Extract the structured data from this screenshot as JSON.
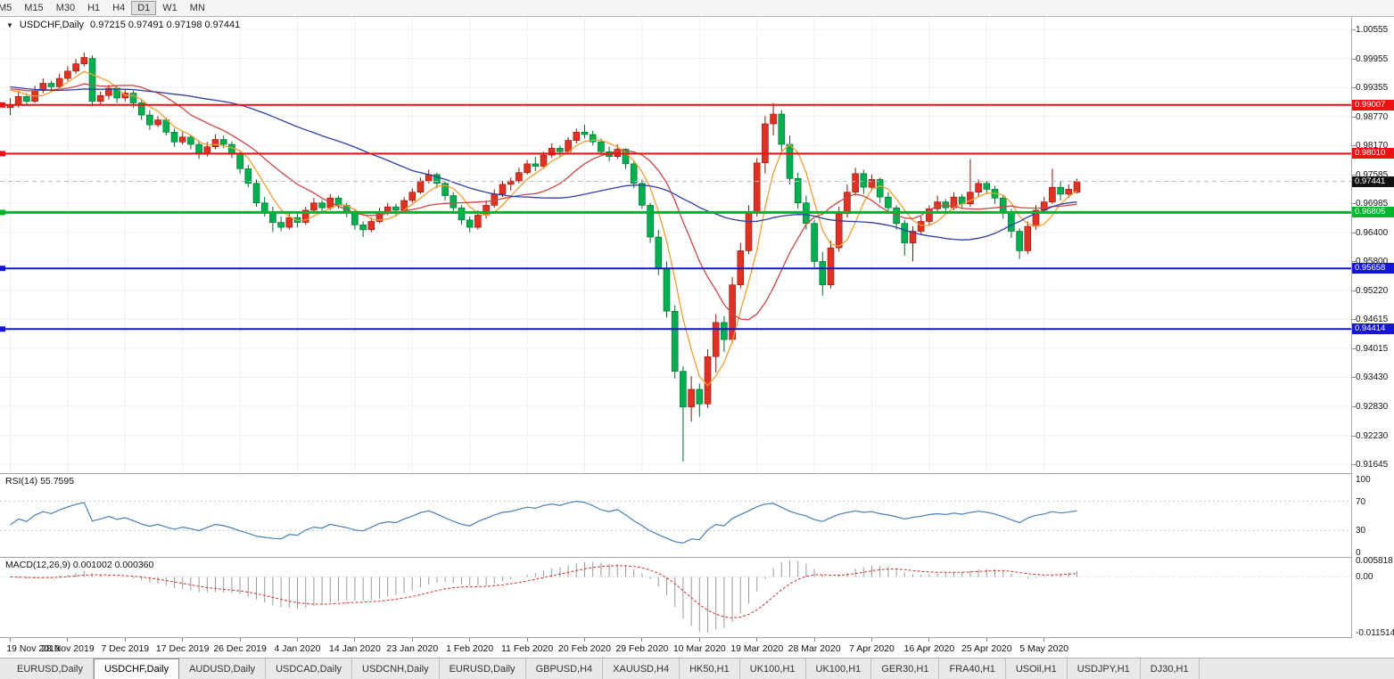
{
  "toolbar": {
    "timeframes": [
      "M5",
      "M15",
      "M30",
      "H1",
      "H4",
      "D1",
      "W1",
      "MN"
    ],
    "active_timeframe": "D1"
  },
  "chart": {
    "title": {
      "dropdown_icon": "▼",
      "symbol": "USDCHF,Daily",
      "ohlc": "0.97215 0.97491 0.97198 0.97441"
    },
    "price_scale": [
      "1.00555",
      "0.99955",
      "0.99355",
      "0.98770",
      "0.98170",
      "0.97585",
      "0.96985",
      "0.96400",
      "0.95800",
      "0.95220",
      "0.94615",
      "0.94015",
      "0.93430",
      "0.92830",
      "0.92230",
      "0.91645"
    ],
    "price_tags": [
      {
        "text": "0.99007",
        "price": 0.99007,
        "bg": "#ee1111",
        "line": "solid",
        "lw": 2
      },
      {
        "text": "0.98010",
        "price": 0.9801,
        "bg": "#ee1111",
        "line": "solid",
        "lw": 2
      },
      {
        "text": "0.97441",
        "price": 0.97441,
        "bg": "#101010",
        "line": "dashed",
        "lw": 1
      },
      {
        "text": "0.96805",
        "price": 0.96805,
        "bg": "#00b52b",
        "line": "solid",
        "lw": 3
      },
      {
        "text": "0.95658",
        "price": 0.95658,
        "bg": "#1515d6",
        "line": "solid",
        "lw": 2
      },
      {
        "text": "0.94414",
        "price": 0.94414,
        "bg": "#1515d6",
        "line": "solid",
        "lw": 2
      }
    ]
  },
  "chart_data": {
    "type": "candlestick",
    "symbol": "USDCHF",
    "timeframe": "Daily",
    "title": "USDCHF,Daily",
    "ohlc_current": {
      "open": 0.97215,
      "high": 0.97491,
      "low": 0.97198,
      "close": 0.97441
    },
    "ylim": [
      0.91645,
      1.00555
    ],
    "bull_color": "#e03224",
    "bull_border": "#8f1408",
    "bear_color": "#00b050",
    "bear_border": "#006b2d",
    "horizontal_levels": [
      0.99007,
      0.9801,
      0.96805,
      0.95658,
      0.94414
    ],
    "x_labels": [
      {
        "i": 0,
        "label": "19 Nov 2019"
      },
      {
        "i": 7,
        "label": "28 Nov 2019"
      },
      {
        "i": 14,
        "label": "7 Dec 2019"
      },
      {
        "i": 21,
        "label": "17 Dec 2019"
      },
      {
        "i": 28,
        "label": "26 Dec 2019"
      },
      {
        "i": 35,
        "label": "4 Jan 2020"
      },
      {
        "i": 42,
        "label": "14 Jan 2020"
      },
      {
        "i": 49,
        "label": "23 Jan 2020"
      },
      {
        "i": 56,
        "label": "1 Feb 2020"
      },
      {
        "i": 63,
        "label": "11 Feb 2020"
      },
      {
        "i": 70,
        "label": "20 Feb 2020"
      },
      {
        "i": 77,
        "label": "29 Feb 2020"
      },
      {
        "i": 84,
        "label": "10 Mar 2020"
      },
      {
        "i": 91,
        "label": "19 Mar 2020"
      },
      {
        "i": 98,
        "label": "28 Mar 2020"
      },
      {
        "i": 105,
        "label": "7 Apr 2020"
      },
      {
        "i": 112,
        "label": "16 Apr 2020"
      },
      {
        "i": 119,
        "label": "25 Apr 2020"
      },
      {
        "i": 126,
        "label": "5 May 2020"
      }
    ],
    "moving_averages": [
      {
        "period": 5,
        "type": "sma",
        "color": "#efa033"
      },
      {
        "period": 13,
        "type": "sma",
        "color": "#cf4646"
      },
      {
        "period": 40,
        "type": "sma",
        "color": "#2c3fa6"
      }
    ],
    "warmup_closes": [
      0.9905,
      0.9912,
      0.992,
      0.9928,
      0.9935,
      0.9942,
      0.995,
      0.9958,
      0.9965,
      0.9972,
      0.9978,
      0.9985,
      0.9992,
      0.9985,
      0.9978,
      0.997,
      0.9962,
      0.9955,
      0.9948,
      0.994,
      0.9932,
      0.9925,
      0.9918,
      0.9922,
      0.993,
      0.9938,
      0.9945,
      0.9938,
      0.993,
      0.9922,
      0.9915,
      0.9908,
      0.9915,
      0.9922,
      0.993,
      0.9925,
      0.9918,
      0.9925,
      0.9932,
      0.9938,
      0.9932,
      0.9925,
      0.9932,
      0.9938,
      0.9945,
      0.9938,
      0.9932,
      0.9938,
      0.9945,
      0.9938
    ],
    "candles": [
      [
        0.9895,
        0.9915,
        0.988,
        0.99
      ],
      [
        0.99,
        0.993,
        0.9895,
        0.9918
      ],
      [
        0.9918,
        0.9925,
        0.99,
        0.9908
      ],
      [
        0.9908,
        0.994,
        0.9905,
        0.993
      ],
      [
        0.993,
        0.9955,
        0.9925,
        0.9945
      ],
      [
        0.9945,
        0.995,
        0.9928,
        0.9938
      ],
      [
        0.9938,
        0.9965,
        0.9935,
        0.9955
      ],
      [
        0.9955,
        0.998,
        0.995,
        0.997
      ],
      [
        0.997,
        0.9995,
        0.9965,
        0.9985
      ],
      [
        0.9985,
        1.0008,
        0.998,
        0.9998
      ],
      [
        0.9996,
        1.0002,
        0.9898,
        0.9908
      ],
      [
        0.9908,
        0.9928,
        0.99,
        0.992
      ],
      [
        0.992,
        0.9942,
        0.9912,
        0.9935
      ],
      [
        0.9935,
        0.994,
        0.9905,
        0.9915
      ],
      [
        0.9915,
        0.9932,
        0.9908,
        0.9925
      ],
      [
        0.9925,
        0.993,
        0.9895,
        0.9905
      ],
      [
        0.9905,
        0.9912,
        0.987,
        0.988
      ],
      [
        0.988,
        0.989,
        0.985,
        0.986
      ],
      [
        0.986,
        0.9878,
        0.9855,
        0.987
      ],
      [
        0.987,
        0.9875,
        0.9838,
        0.9845
      ],
      [
        0.9845,
        0.9852,
        0.9815,
        0.9825
      ],
      [
        0.9825,
        0.9845,
        0.982,
        0.9835
      ],
      [
        0.9835,
        0.984,
        0.981,
        0.982
      ],
      [
        0.982,
        0.9828,
        0.979,
        0.98
      ],
      [
        0.98,
        0.9825,
        0.9795,
        0.9815
      ],
      [
        0.9815,
        0.984,
        0.981,
        0.983
      ],
      [
        0.983,
        0.9838,
        0.9812,
        0.982
      ],
      [
        0.982,
        0.9826,
        0.9792,
        0.98
      ],
      [
        0.98,
        0.9805,
        0.976,
        0.977
      ],
      [
        0.977,
        0.9778,
        0.9732,
        0.974
      ],
      [
        0.974,
        0.9748,
        0.9692,
        0.97
      ],
      [
        0.97,
        0.9712,
        0.9672,
        0.968
      ],
      [
        0.968,
        0.9692,
        0.964,
        0.966
      ],
      [
        0.966,
        0.9672,
        0.9642,
        0.965
      ],
      [
        0.965,
        0.968,
        0.9645,
        0.967
      ],
      [
        0.967,
        0.9678,
        0.965,
        0.966
      ],
      [
        0.966,
        0.9692,
        0.9655,
        0.9685
      ],
      [
        0.9685,
        0.971,
        0.968,
        0.97
      ],
      [
        0.97,
        0.9706,
        0.9682,
        0.969
      ],
      [
        0.969,
        0.9718,
        0.9685,
        0.971
      ],
      [
        0.971,
        0.9715,
        0.9688,
        0.9695
      ],
      [
        0.9695,
        0.97,
        0.967,
        0.968
      ],
      [
        0.968,
        0.9688,
        0.9645,
        0.9655
      ],
      [
        0.9655,
        0.9662,
        0.963,
        0.9645
      ],
      [
        0.9645,
        0.967,
        0.964,
        0.9662
      ],
      [
        0.9662,
        0.969,
        0.9658,
        0.9682
      ],
      [
        0.9682,
        0.97,
        0.9675,
        0.9692
      ],
      [
        0.9692,
        0.9698,
        0.9672,
        0.9685
      ],
      [
        0.9685,
        0.9712,
        0.968,
        0.9705
      ],
      [
        0.9705,
        0.973,
        0.97,
        0.9722
      ],
      [
        0.9722,
        0.9752,
        0.9718,
        0.9745
      ],
      [
        0.9745,
        0.9768,
        0.974,
        0.9758
      ],
      [
        0.9758,
        0.9762,
        0.973,
        0.974
      ],
      [
        0.974,
        0.9745,
        0.9705,
        0.9715
      ],
      [
        0.9715,
        0.9722,
        0.968,
        0.969
      ],
      [
        0.969,
        0.9695,
        0.9655,
        0.9665
      ],
      [
        0.9665,
        0.9672,
        0.964,
        0.965
      ],
      [
        0.965,
        0.9685,
        0.9645,
        0.9675
      ],
      [
        0.9675,
        0.9705,
        0.9668,
        0.9695
      ],
      [
        0.9695,
        0.9728,
        0.969,
        0.9718
      ],
      [
        0.9718,
        0.9745,
        0.9712,
        0.9738
      ],
      [
        0.9738,
        0.9752,
        0.9725,
        0.9745
      ],
      [
        0.9745,
        0.9772,
        0.974,
        0.9762
      ],
      [
        0.9762,
        0.9788,
        0.9758,
        0.978
      ],
      [
        0.978,
        0.9795,
        0.9765,
        0.9775
      ],
      [
        0.9775,
        0.9805,
        0.977,
        0.9798
      ],
      [
        0.9798,
        0.9822,
        0.9792,
        0.9812
      ],
      [
        0.9812,
        0.9818,
        0.9795,
        0.9805
      ],
      [
        0.9805,
        0.9835,
        0.98,
        0.9828
      ],
      [
        0.9828,
        0.9852,
        0.9822,
        0.9845
      ],
      [
        0.9845,
        0.986,
        0.9832,
        0.984
      ],
      [
        0.984,
        0.9848,
        0.9818,
        0.9825
      ],
      [
        0.9825,
        0.9832,
        0.9798,
        0.9805
      ],
      [
        0.9805,
        0.9815,
        0.9785,
        0.9795
      ],
      [
        0.9795,
        0.982,
        0.979,
        0.981
      ],
      [
        0.981,
        0.9812,
        0.977,
        0.978
      ],
      [
        0.978,
        0.9785,
        0.973,
        0.974
      ],
      [
        0.974,
        0.9748,
        0.9688,
        0.9695
      ],
      [
        0.9695,
        0.97,
        0.9618,
        0.963
      ],
      [
        0.963,
        0.9645,
        0.9552,
        0.9565
      ],
      [
        0.9565,
        0.958,
        0.9465,
        0.9478
      ],
      [
        0.9478,
        0.949,
        0.934,
        0.9355
      ],
      [
        0.9355,
        0.9365,
        0.917,
        0.9282
      ],
      [
        0.9282,
        0.9345,
        0.9252,
        0.9318
      ],
      [
        0.9318,
        0.933,
        0.9262,
        0.9288
      ],
      [
        0.9288,
        0.94,
        0.928,
        0.9385
      ],
      [
        0.9385,
        0.9472,
        0.9352,
        0.9455
      ],
      [
        0.9455,
        0.9468,
        0.9395,
        0.942
      ],
      [
        0.942,
        0.9548,
        0.9412,
        0.9532
      ],
      [
        0.9532,
        0.9618,
        0.9525,
        0.9602
      ],
      [
        0.9602,
        0.9695,
        0.9595,
        0.968
      ],
      [
        0.968,
        0.9792,
        0.9672,
        0.9782
      ],
      [
        0.9782,
        0.9878,
        0.976,
        0.9862
      ],
      [
        0.9862,
        0.9905,
        0.9838,
        0.9882
      ],
      [
        0.9882,
        0.989,
        0.9805,
        0.982
      ],
      [
        0.982,
        0.9838,
        0.9738,
        0.975
      ],
      [
        0.975,
        0.9762,
        0.9688,
        0.97
      ],
      [
        0.97,
        0.9715,
        0.9645,
        0.9658
      ],
      [
        0.9658,
        0.9665,
        0.9568,
        0.958
      ],
      [
        0.958,
        0.96,
        0.951,
        0.9532
      ],
      [
        0.9532,
        0.9622,
        0.9525,
        0.9608
      ],
      [
        0.9608,
        0.9692,
        0.96,
        0.9678
      ],
      [
        0.9678,
        0.9738,
        0.967,
        0.9722
      ],
      [
        0.9722,
        0.9772,
        0.9715,
        0.976
      ],
      [
        0.976,
        0.9768,
        0.9718,
        0.9732
      ],
      [
        0.9732,
        0.9758,
        0.9725,
        0.9748
      ],
      [
        0.9748,
        0.9752,
        0.97,
        0.9712
      ],
      [
        0.9712,
        0.9722,
        0.9678,
        0.969
      ],
      [
        0.969,
        0.9695,
        0.9645,
        0.9658
      ],
      [
        0.9658,
        0.9665,
        0.9592,
        0.9618
      ],
      [
        0.9618,
        0.9652,
        0.958,
        0.9642
      ],
      [
        0.9642,
        0.9672,
        0.9635,
        0.9662
      ],
      [
        0.9662,
        0.9695,
        0.9655,
        0.9688
      ],
      [
        0.9688,
        0.9715,
        0.9682,
        0.9702
      ],
      [
        0.9702,
        0.9708,
        0.9678,
        0.969
      ],
      [
        0.969,
        0.9722,
        0.9685,
        0.9712
      ],
      [
        0.9712,
        0.9718,
        0.9688,
        0.9698
      ],
      [
        0.9698,
        0.979,
        0.9692,
        0.9722
      ],
      [
        0.9722,
        0.9748,
        0.9712,
        0.974
      ],
      [
        0.974,
        0.9745,
        0.9718,
        0.9728
      ],
      [
        0.9728,
        0.9735,
        0.9698,
        0.971
      ],
      [
        0.971,
        0.9715,
        0.9668,
        0.968
      ],
      [
        0.968,
        0.9688,
        0.9628,
        0.9642
      ],
      [
        0.9642,
        0.9648,
        0.9585,
        0.9602
      ],
      [
        0.9602,
        0.9662,
        0.9595,
        0.9652
      ],
      [
        0.9652,
        0.9695,
        0.9645,
        0.9685
      ],
      [
        0.9685,
        0.9712,
        0.9678,
        0.9702
      ],
      [
        0.9702,
        0.977,
        0.9698,
        0.9732
      ],
      [
        0.9732,
        0.9745,
        0.9705,
        0.9718
      ],
      [
        0.9718,
        0.9738,
        0.971,
        0.9728
      ],
      [
        0.97215,
        0.97491,
        0.97198,
        0.97441
      ]
    ]
  },
  "rsi": {
    "label": "RSI(14) 55.7595",
    "period": 14,
    "levels": [
      70,
      30
    ],
    "scale": [
      "100",
      "70",
      "30",
      "0"
    ],
    "color": "#4a7fb5"
  },
  "macd": {
    "label": "MACD(12,26,9) 0.001002 0.000360",
    "fast": 12,
    "slow": 26,
    "signal": 9,
    "scale_top": "0.005818",
    "scale_zero": "0.00",
    "scale_bottom": "-0.011514",
    "main_color": "#9a9a9a",
    "signal_color": "#cc3333"
  },
  "tabs": {
    "active_index": 1,
    "items": [
      "EURUSD,Daily",
      "USDCHF,Daily",
      "AUDUSD,Daily",
      "USDCAD,Daily",
      "USDCNH,Daily",
      "EURUSD,Daily",
      "GBPUSD,H4",
      "XAUUSD,H4",
      "HK50,H1",
      "UK100,H1",
      "UK100,H1",
      "GER30,H1",
      "FRA40,H1",
      "USOil,H1",
      "USDJPY,H1",
      "DJ30,H1"
    ]
  }
}
